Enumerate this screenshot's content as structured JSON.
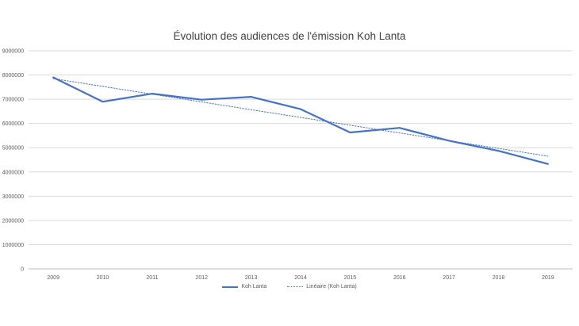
{
  "chart_data": {
    "type": "line",
    "title": "Évolution des audiences de l'émission Koh Lanta",
    "xlabel": "",
    "ylabel": "",
    "categories": [
      "2009",
      "2010",
      "2011",
      "2012",
      "2013",
      "2014",
      "2015",
      "2016",
      "2017",
      "2018",
      "2019"
    ],
    "ylim": [
      0,
      9000000
    ],
    "yticks": [
      "0",
      "1000000",
      "2000000",
      "3000000",
      "4000000",
      "5000000",
      "6000000",
      "7000000",
      "8000000",
      "9000000"
    ],
    "grid": true,
    "legend_position": "bottom",
    "series": [
      {
        "name": "Koh Lanta",
        "values": [
          7900000,
          6900000,
          7230000,
          6980000,
          7100000,
          6590000,
          5630000,
          5820000,
          5290000,
          4870000,
          4330000
        ],
        "color": "#4472C4",
        "style": "solid"
      },
      {
        "name": "Linéaire (Koh Lanta)",
        "values": [
          7850000,
          7530000,
          7210000,
          6890000,
          6570000,
          6250000,
          5930000,
          5610000,
          5290000,
          4970000,
          4650000
        ],
        "color": "#4472C4",
        "style": "dotted"
      }
    ]
  }
}
